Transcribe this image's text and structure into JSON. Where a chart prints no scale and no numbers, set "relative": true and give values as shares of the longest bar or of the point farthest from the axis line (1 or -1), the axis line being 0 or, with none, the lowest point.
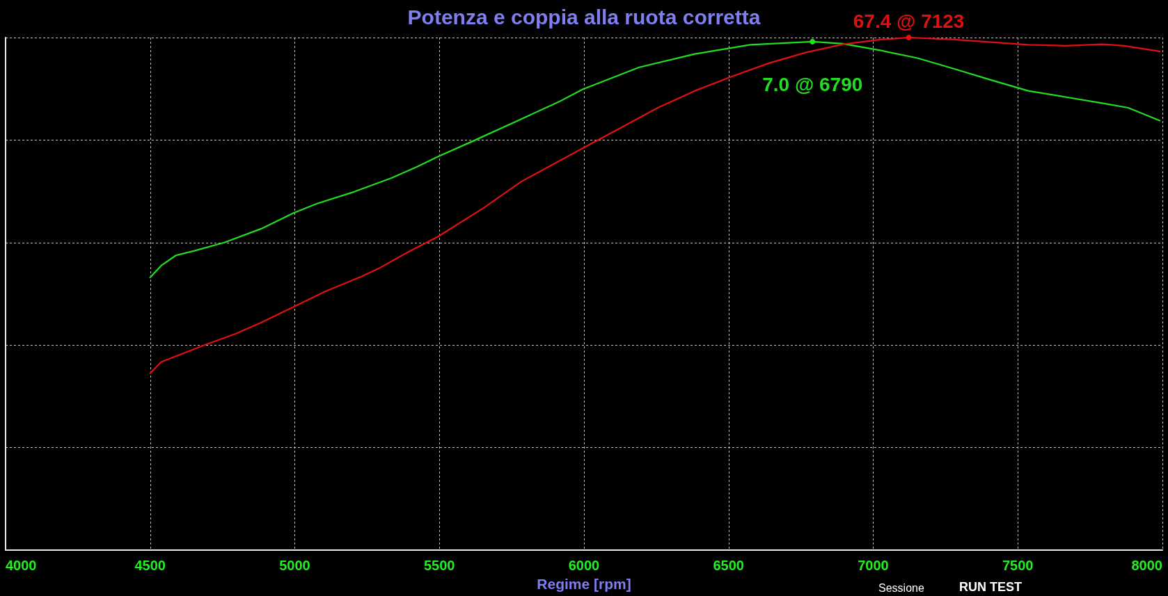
{
  "chart_data": {
    "type": "line",
    "title": "Potenza e coppia alla ruota corretta",
    "xlabel": "Regime [rpm]",
    "relative": true,
    "xlim": [
      4000,
      8000
    ],
    "xticks": [
      4000,
      4500,
      5000,
      5500,
      6000,
      6500,
      7000,
      7500,
      8000
    ],
    "grid": true,
    "series": [
      {
        "color": "#22dd22",
        "x": [
          4500,
          4538,
          4589,
          4653,
          4756,
          4884,
          4997,
          5077,
          5205,
          5334,
          5423,
          5496,
          5616,
          5783,
          5911,
          5995,
          6191,
          6383,
          6575,
          6790,
          6896,
          7024,
          7153,
          7280,
          7408,
          7536,
          7665,
          7792,
          7882,
          7991
        ],
        "values": [
          0.532,
          0.555,
          0.575,
          0.584,
          0.6,
          0.627,
          0.658,
          0.676,
          0.699,
          0.726,
          0.748,
          0.768,
          0.798,
          0.841,
          0.874,
          0.899,
          0.942,
          0.968,
          0.986,
          0.992,
          0.988,
          0.975,
          0.96,
          0.939,
          0.917,
          0.896,
          0.884,
          0.872,
          0.863,
          0.838
        ]
      },
      {
        "color": "#e01010",
        "x": [
          4500,
          4538,
          4615,
          4692,
          4795,
          4884,
          4997,
          5103,
          5231,
          5295,
          5397,
          5496,
          5654,
          5783,
          5995,
          6127,
          6255,
          6383,
          6511,
          6639,
          6768,
          6896,
          7024,
          7123,
          7280,
          7408,
          7536,
          7665,
          7792,
          7868,
          7991
        ],
        "values": [
          0.345,
          0.367,
          0.384,
          0.401,
          0.422,
          0.444,
          0.475,
          0.504,
          0.534,
          0.551,
          0.583,
          0.612,
          0.668,
          0.719,
          0.784,
          0.824,
          0.863,
          0.896,
          0.924,
          0.95,
          0.971,
          0.987,
          0.996,
          1.0,
          0.996,
          0.991,
          0.986,
          0.984,
          0.987,
          0.984,
          0.973
        ]
      }
    ],
    "annotations": [
      {
        "text": "7.0 @ 6790",
        "x": 6790,
        "y": 0.992
      },
      {
        "text": "67.4 @ 7123",
        "x": 7123,
        "y": 1.0
      },
      "Sessione",
      "RUN TEST"
    ]
  }
}
